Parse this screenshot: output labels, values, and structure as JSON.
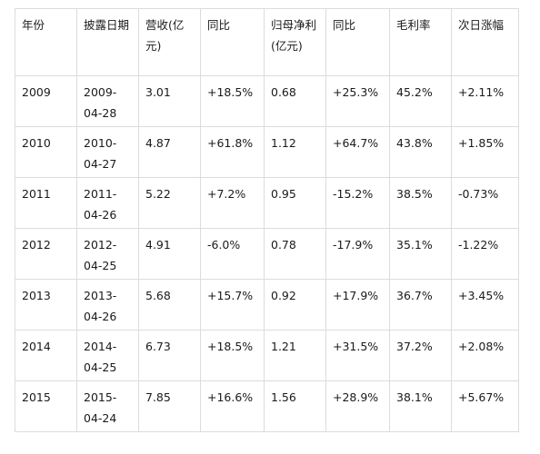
{
  "table": {
    "headers": [
      "年份",
      "披露日期",
      "营收(亿元)",
      "同比",
      "归母净利(亿元)",
      "同比",
      "毛利率",
      "次日涨幅"
    ],
    "rows": [
      {
        "year": "2009",
        "date_line1": "2009-",
        "date_line2": "04-28",
        "revenue": "3.01",
        "revenue_yoy": "+18.5%",
        "net_profit": "0.68",
        "net_profit_yoy": "+25.3%",
        "gross_margin": "45.2%",
        "next_day_change": "+2.11%"
      },
      {
        "year": "2010",
        "date_line1": "2010-",
        "date_line2": "04-27",
        "revenue": "4.87",
        "revenue_yoy": "+61.8%",
        "net_profit": "1.12",
        "net_profit_yoy": "+64.7%",
        "gross_margin": "43.8%",
        "next_day_change": "+1.85%"
      },
      {
        "year": "2011",
        "date_line1": "2011-",
        "date_line2": "04-26",
        "revenue": "5.22",
        "revenue_yoy": "+7.2%",
        "net_profit": "0.95",
        "net_profit_yoy": "-15.2%",
        "gross_margin": "38.5%",
        "next_day_change": "-0.73%"
      },
      {
        "year": "2012",
        "date_line1": "2012-",
        "date_line2": "04-25",
        "revenue": "4.91",
        "revenue_yoy": "-6.0%",
        "net_profit": "0.78",
        "net_profit_yoy": "-17.9%",
        "gross_margin": "35.1%",
        "next_day_change": "-1.22%"
      },
      {
        "year": "2013",
        "date_line1": "2013-",
        "date_line2": "04-26",
        "revenue": "5.68",
        "revenue_yoy": "+15.7%",
        "net_profit": "0.92",
        "net_profit_yoy": "+17.9%",
        "gross_margin": "36.7%",
        "next_day_change": "+3.45%"
      },
      {
        "year": "2014",
        "date_line1": "2014-",
        "date_line2": "04-25",
        "revenue": "6.73",
        "revenue_yoy": "+18.5%",
        "net_profit": "1.21",
        "net_profit_yoy": "+31.5%",
        "gross_margin": "37.2%",
        "next_day_change": "+2.08%"
      },
      {
        "year": "2015",
        "date_line1": "2015-",
        "date_line2": "04-24",
        "revenue": "7.85",
        "revenue_yoy": "+16.6%",
        "net_profit": "1.56",
        "net_profit_yoy": "+28.9%",
        "gross_margin": "38.1%",
        "next_day_change": "+5.67%"
      }
    ]
  }
}
